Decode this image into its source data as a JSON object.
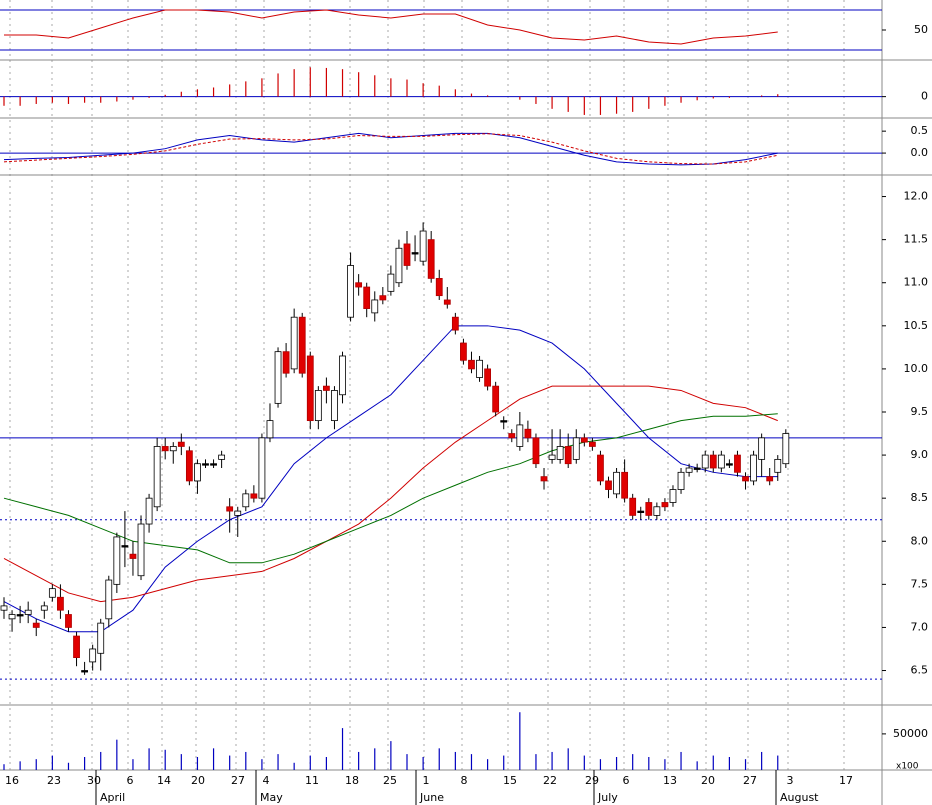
{
  "chart_data": [
    {
      "type": "line",
      "name": "rsi",
      "ylim": [
        20,
        80
      ],
      "yticks": [
        50
      ],
      "reference_lines": [
        70,
        30
      ],
      "series": [
        {
          "color": "#d00000",
          "values": [
            45,
            45,
            42,
            52,
            62,
            70,
            70,
            68,
            62,
            68,
            70,
            65,
            62,
            66,
            66,
            55,
            50,
            42,
            40,
            44,
            38,
            36,
            42,
            44,
            48
          ]
        }
      ]
    },
    {
      "type": "bar",
      "name": "macd-histogram",
      "ylim": [
        -0.35,
        0.6
      ],
      "yticks": [
        0
      ],
      "reference_lines": [
        0
      ],
      "color": "#d00000",
      "values": [
        -0.15,
        -0.15,
        -0.12,
        -0.1,
        -0.12,
        -0.1,
        -0.1,
        -0.08,
        -0.05,
        -0.02,
        0.03,
        0.08,
        0.12,
        0.15,
        0.2,
        0.25,
        0.3,
        0.38,
        0.45,
        0.48,
        0.47,
        0.45,
        0.4,
        0.35,
        0.3,
        0.28,
        0.22,
        0.18,
        0.12,
        0.05,
        0.02,
        0,
        -0.05,
        -0.12,
        -0.2,
        -0.25,
        -0.3,
        -0.3,
        -0.28,
        -0.25,
        -0.2,
        -0.15,
        -0.1,
        -0.06,
        -0.03,
        -0.02,
        0,
        0.02,
        0.04
      ]
    },
    {
      "type": "line",
      "name": "macd",
      "ylim": [
        -0.5,
        0.8
      ],
      "yticks": [
        0.5,
        {
          "value": 0,
          "label": "0.0"
        }
      ],
      "reference_lines": [
        0
      ],
      "series": [
        {
          "color": "#0000c0",
          "values": [
            -0.15,
            -0.12,
            -0.1,
            -0.05,
            0,
            0.1,
            0.3,
            0.4,
            0.3,
            0.25,
            0.35,
            0.45,
            0.35,
            0.4,
            0.45,
            0.45,
            0.35,
            0.15,
            -0.05,
            -0.2,
            -0.25,
            -0.27,
            -0.25,
            -0.15,
            0
          ]
        },
        {
          "color": "#d00000",
          "dashed": true,
          "values": [
            -0.2,
            -0.16,
            -0.12,
            -0.08,
            -0.03,
            0.05,
            0.2,
            0.32,
            0.33,
            0.3,
            0.32,
            0.4,
            0.38,
            0.38,
            0.42,
            0.44,
            0.4,
            0.25,
            0.05,
            -0.12,
            -0.2,
            -0.24,
            -0.25,
            -0.2,
            -0.05
          ]
        }
      ]
    },
    {
      "type": "candlestick",
      "name": "price",
      "ylim": [
        6.1,
        12.25
      ],
      "yticks": [
        {
          "value": 12,
          "label": "12.0"
        },
        11.5,
        {
          "value": 11,
          "label": "11.0"
        },
        10.5,
        {
          "value": 10,
          "label": "10.0"
        },
        9.5,
        {
          "value": 9,
          "label": "9.0"
        },
        8.5,
        {
          "value": 8,
          "label": "8.0"
        },
        7.5,
        {
          "value": 7,
          "label": "7.0"
        },
        6.5
      ],
      "reference_lines": [
        9.2,
        8.25,
        6.4
      ],
      "ohlc": [
        [
          7.2,
          7.35,
          7.1,
          7.25
        ],
        [
          7.1,
          7.2,
          6.95,
          7.15
        ],
        [
          7.15,
          7.25,
          7.05,
          7.15
        ],
        [
          7.15,
          7.3,
          7.05,
          7.2
        ],
        [
          7.05,
          7.1,
          6.9,
          7.0
        ],
        [
          7.2,
          7.3,
          7.1,
          7.25
        ],
        [
          7.35,
          7.5,
          7.3,
          7.45
        ],
        [
          7.35,
          7.5,
          7.1,
          7.2
        ],
        [
          7.15,
          7.2,
          6.95,
          7.0
        ],
        [
          6.9,
          6.95,
          6.55,
          6.65
        ],
        [
          6.5,
          6.6,
          6.45,
          6.5
        ],
        [
          6.6,
          6.8,
          6.5,
          6.75
        ],
        [
          6.7,
          7.1,
          6.5,
          7.05
        ],
        [
          7.1,
          7.6,
          7.0,
          7.55
        ],
        [
          7.5,
          8.1,
          7.4,
          8.05
        ],
        [
          7.95,
          8.35,
          7.7,
          7.95
        ],
        [
          7.85,
          8.0,
          7.6,
          7.8
        ],
        [
          7.6,
          8.3,
          7.55,
          8.2
        ],
        [
          8.2,
          8.55,
          8.1,
          8.5
        ],
        [
          8.4,
          9.2,
          8.35,
          9.1
        ],
        [
          9.1,
          9.2,
          8.95,
          9.05
        ],
        [
          9.05,
          9.15,
          8.9,
          9.1
        ],
        [
          9.15,
          9.25,
          9.0,
          9.1
        ],
        [
          9.05,
          9.1,
          8.65,
          8.7
        ],
        [
          8.7,
          8.95,
          8.55,
          8.9
        ],
        [
          8.9,
          8.95,
          8.85,
          8.9
        ],
        [
          8.9,
          8.95,
          8.85,
          8.9
        ],
        [
          8.95,
          9.05,
          8.85,
          9.0
        ],
        [
          8.4,
          8.5,
          8.1,
          8.35
        ],
        [
          8.3,
          8.4,
          8.05,
          8.35
        ],
        [
          8.4,
          8.6,
          8.35,
          8.55
        ],
        [
          8.55,
          8.65,
          8.45,
          8.5
        ],
        [
          8.5,
          9.25,
          8.45,
          9.2
        ],
        [
          9.2,
          9.6,
          9.15,
          9.4
        ],
        [
          9.6,
          10.25,
          9.55,
          10.2
        ],
        [
          10.2,
          10.3,
          9.9,
          9.95
        ],
        [
          10.0,
          10.7,
          9.95,
          10.6
        ],
        [
          10.6,
          10.65,
          9.9,
          9.95
        ],
        [
          10.15,
          10.2,
          9.3,
          9.4
        ],
        [
          9.4,
          9.8,
          9.3,
          9.75
        ],
        [
          9.8,
          9.9,
          9.6,
          9.75
        ],
        [
          9.4,
          9.8,
          9.3,
          9.75
        ],
        [
          9.7,
          10.2,
          9.6,
          10.15
        ],
        [
          10.6,
          11.35,
          10.55,
          11.2
        ],
        [
          11.0,
          11.1,
          10.85,
          10.95
        ],
        [
          10.95,
          11.0,
          10.6,
          10.7
        ],
        [
          10.65,
          10.9,
          10.55,
          10.8
        ],
        [
          10.85,
          10.95,
          10.75,
          10.8
        ],
        [
          10.9,
          11.2,
          10.85,
          11.1
        ],
        [
          11.0,
          11.5,
          10.95,
          11.4
        ],
        [
          11.45,
          11.6,
          11.15,
          11.2
        ],
        [
          11.35,
          11.55,
          11.25,
          11.35
        ],
        [
          11.25,
          11.7,
          11.2,
          11.6
        ],
        [
          11.5,
          11.6,
          11.0,
          11.05
        ],
        [
          11.05,
          11.15,
          10.8,
          10.85
        ],
        [
          10.8,
          10.95,
          10.7,
          10.75
        ],
        [
          10.6,
          10.65,
          10.4,
          10.45
        ],
        [
          10.3,
          10.35,
          10.05,
          10.1
        ],
        [
          10.1,
          10.2,
          9.95,
          10.0
        ],
        [
          9.9,
          10.15,
          9.85,
          10.1
        ],
        [
          10.0,
          10.05,
          9.75,
          9.8
        ],
        [
          9.8,
          9.85,
          9.45,
          9.5
        ],
        [
          9.4,
          9.45,
          9.3,
          9.4
        ],
        [
          9.25,
          9.3,
          9.15,
          9.2
        ],
        [
          9.1,
          9.5,
          9.05,
          9.35
        ],
        [
          9.3,
          9.4,
          9.15,
          9.2
        ],
        [
          9.2,
          9.25,
          8.85,
          8.9
        ],
        [
          8.75,
          8.85,
          8.6,
          8.7
        ],
        [
          8.95,
          9.3,
          8.9,
          9.0
        ],
        [
          8.95,
          9.3,
          8.9,
          9.1
        ],
        [
          9.1,
          9.25,
          8.85,
          8.9
        ],
        [
          8.95,
          9.3,
          8.9,
          9.2
        ],
        [
          9.2,
          9.25,
          9.1,
          9.15
        ],
        [
          9.15,
          9.2,
          9.05,
          9.1
        ],
        [
          9.0,
          9.05,
          8.65,
          8.7
        ],
        [
          8.7,
          8.75,
          8.5,
          8.6
        ],
        [
          8.55,
          8.85,
          8.5,
          8.8
        ],
        [
          8.8,
          8.95,
          8.45,
          8.5
        ],
        [
          8.5,
          8.55,
          8.25,
          8.3
        ],
        [
          8.35,
          8.4,
          8.25,
          8.35
        ],
        [
          8.45,
          8.5,
          8.25,
          8.3
        ],
        [
          8.3,
          8.45,
          8.25,
          8.4
        ],
        [
          8.45,
          8.5,
          8.35,
          8.4
        ],
        [
          8.45,
          8.65,
          8.4,
          8.6
        ],
        [
          8.6,
          8.85,
          8.55,
          8.8
        ],
        [
          8.8,
          8.9,
          8.75,
          8.85
        ],
        [
          8.85,
          8.9,
          8.8,
          8.85
        ],
        [
          8.85,
          9.05,
          8.8,
          9.0
        ],
        [
          9.0,
          9.05,
          8.8,
          8.85
        ],
        [
          8.85,
          9.05,
          8.8,
          9.0
        ],
        [
          8.9,
          8.95,
          8.85,
          8.9
        ],
        [
          9.0,
          9.05,
          8.75,
          8.8
        ],
        [
          8.75,
          8.8,
          8.6,
          8.7
        ],
        [
          8.7,
          9.05,
          8.65,
          9.0
        ],
        [
          8.95,
          9.25,
          8.75,
          9.2
        ],
        [
          8.75,
          8.85,
          8.65,
          8.7
        ],
        [
          8.8,
          9.0,
          8.7,
          8.95
        ],
        [
          8.9,
          9.3,
          8.85,
          9.25
        ]
      ],
      "series": [
        {
          "color": "#0000c0",
          "values": [
            7.3,
            7.1,
            6.95,
            6.95,
            7.2,
            7.7,
            8.0,
            8.25,
            8.4,
            8.9,
            9.2,
            9.45,
            9.7,
            10.1,
            10.5,
            10.5,
            10.45,
            10.3,
            10.0,
            9.6,
            9.2,
            8.9,
            8.8,
            8.75,
            8.75
          ]
        },
        {
          "color": "#d00000",
          "values": [
            7.8,
            7.6,
            7.4,
            7.3,
            7.35,
            7.45,
            7.55,
            7.6,
            7.65,
            7.8,
            8.0,
            8.2,
            8.5,
            8.85,
            9.15,
            9.4,
            9.65,
            9.8,
            9.8,
            9.8,
            9.8,
            9.75,
            9.6,
            9.55,
            9.4
          ]
        },
        {
          "color": "#007000",
          "values": [
            8.5,
            8.4,
            8.3,
            8.15,
            8.0,
            7.95,
            7.9,
            7.75,
            7.75,
            7.85,
            8.0,
            8.15,
            8.3,
            8.5,
            8.65,
            8.8,
            8.9,
            9.05,
            9.15,
            9.2,
            9.3,
            9.4,
            9.45,
            9.45,
            9.48
          ]
        }
      ]
    },
    {
      "type": "bar",
      "name": "volume",
      "ylim": [
        0,
        90000
      ],
      "yticks": [
        50000
      ],
      "unit_label": "x100",
      "color": "#0000c0",
      "values": [
        8000,
        12000,
        15000,
        20000,
        10000,
        18000,
        25000,
        42000,
        15000,
        30000,
        28000,
        22000,
        18000,
        30000,
        20000,
        25000,
        15000,
        22000,
        10000,
        20000,
        18000,
        58000,
        25000,
        30000,
        40000,
        22000,
        18000,
        30000,
        25000,
        22000,
        15000,
        20000,
        80000,
        22000,
        25000,
        30000,
        20000,
        15000,
        18000,
        22000,
        18000,
        15000,
        25000,
        12000,
        20000,
        18000,
        15000,
        25000,
        20000
      ]
    },
    {
      "type": "axis",
      "name": "dates",
      "days": [
        "16",
        "23",
        "30",
        "6",
        "14",
        "20",
        "27",
        "4",
        "11",
        "18",
        "25",
        "1",
        "8",
        "15",
        "22",
        "29",
        "6",
        "13",
        "20",
        "27",
        "3",
        "17"
      ],
      "months": [
        "April",
        "May",
        "June",
        "July",
        "August"
      ]
    }
  ]
}
